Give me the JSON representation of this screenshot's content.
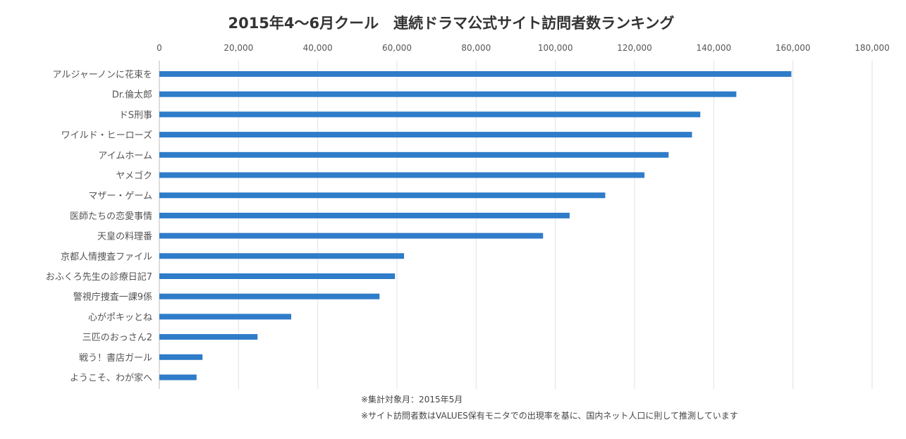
{
  "chart_data": {
    "type": "bar",
    "orientation": "horizontal",
    "title": "2015年4〜6月クール　連続ドラマ公式サイト訪問者数ランキング",
    "xlabel": "",
    "ylabel": "",
    "xlim": [
      0,
      180000
    ],
    "x_ticks": [
      "0",
      "20,000",
      "40,000",
      "60,000",
      "80,000",
      "100,000",
      "120,000",
      "140,000",
      "160,000",
      "180,000"
    ],
    "x_tick_values": [
      0,
      20000,
      40000,
      60000,
      80000,
      100000,
      120000,
      140000,
      160000,
      180000
    ],
    "x_axis_position": "top",
    "grid": true,
    "legend": "none",
    "bar_color": "#2f7cc9",
    "categories": [
      "アルジャーノンに花束を",
      "Dr.倫太郎",
      "ドS刑事",
      "ワイルド・ヒーローズ",
      "アイムホーム",
      "ヤメゴク",
      "マザー・ゲーム",
      "医師たちの恋愛事情",
      "天皇の料理番",
      "京都人情捜査ファイル",
      "おふくろ先生の診療日記7",
      "警視庁捜査一課9係",
      "心がポキッとね",
      "三匹のおっさん2",
      "戦う！書店ガール",
      "ようこそ、わが家へ"
    ],
    "values": [
      159600,
      145700,
      136600,
      134500,
      128600,
      122500,
      112600,
      103600,
      96900,
      61800,
      59500,
      55600,
      33300,
      24800,
      10900,
      9400
    ],
    "notes": [
      "※集計対象月：2015年5月",
      "※サイト訪問者数はVALUES保有モニタでの出現率を基に、国内ネット人口に則して推測しています"
    ]
  }
}
